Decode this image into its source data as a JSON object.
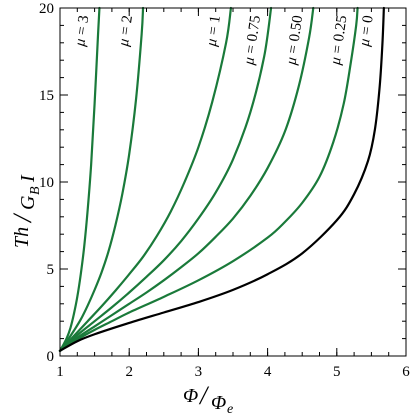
{
  "chart_data": {
    "type": "line",
    "xlim": [
      1,
      6
    ],
    "ylim": [
      0,
      20
    ],
    "x_ticks": [
      1,
      2,
      3,
      4,
      5,
      6
    ],
    "y_ticks": [
      0,
      5,
      10,
      15,
      20
    ],
    "x_minor_step": 0.25,
    "y_minor_step": 1,
    "grid": false,
    "xlabel": {
      "numerator": "Φ",
      "slash": "/",
      "denominator": "Φ",
      "denominator_sub": "e"
    },
    "ylabel": {
      "numerator": "Th",
      "slash": "/",
      "denominator": "G",
      "denominator_sub": "B",
      "denominator_tail": "I"
    },
    "colors": {
      "green": "#1a7a3a",
      "black": "#000000"
    },
    "series": [
      {
        "label": "μ = 3",
        "color": "#1a7a3a",
        "points": [
          [
            1.0,
            0.3
          ],
          [
            1.05,
            0.65
          ],
          [
            1.1,
            1.05
          ],
          [
            1.15,
            1.6
          ],
          [
            1.2,
            2.4
          ],
          [
            1.25,
            3.4
          ],
          [
            1.3,
            4.7
          ],
          [
            1.35,
            6.3
          ],
          [
            1.4,
            8.4
          ],
          [
            1.45,
            11.0
          ],
          [
            1.5,
            14.5
          ],
          [
            1.55,
            18.5
          ],
          [
            1.57,
            20.0
          ]
        ]
      },
      {
        "label": "μ = 2",
        "color": "#1a7a3a",
        "points": [
          [
            1.0,
            0.3
          ],
          [
            1.1,
            0.85
          ],
          [
            1.2,
            1.45
          ],
          [
            1.3,
            2.1
          ],
          [
            1.4,
            2.9
          ],
          [
            1.5,
            3.8
          ],
          [
            1.6,
            4.8
          ],
          [
            1.7,
            6.0
          ],
          [
            1.8,
            7.5
          ],
          [
            1.9,
            9.3
          ],
          [
            2.0,
            11.6
          ],
          [
            2.1,
            14.8
          ],
          [
            2.18,
            18.5
          ],
          [
            2.2,
            20.0
          ]
        ]
      },
      {
        "label": "μ = 1",
        "color": "#1a7a3a",
        "points": [
          [
            1.0,
            0.3
          ],
          [
            1.2,
            1.15
          ],
          [
            1.4,
            2.0
          ],
          [
            1.6,
            2.85
          ],
          [
            1.8,
            3.75
          ],
          [
            2.0,
            4.7
          ],
          [
            2.2,
            5.7
          ],
          [
            2.4,
            6.9
          ],
          [
            2.6,
            8.3
          ],
          [
            2.8,
            10.0
          ],
          [
            3.0,
            12.0
          ],
          [
            3.2,
            14.6
          ],
          [
            3.4,
            18.0
          ],
          [
            3.47,
            20.0
          ]
        ]
      },
      {
        "label": "μ = 0.75",
        "color": "#1a7a3a",
        "points": [
          [
            1.0,
            0.3
          ],
          [
            1.25,
            1.2
          ],
          [
            1.5,
            2.0
          ],
          [
            1.75,
            2.8
          ],
          [
            2.0,
            3.65
          ],
          [
            2.25,
            4.55
          ],
          [
            2.5,
            5.5
          ],
          [
            2.75,
            6.6
          ],
          [
            3.0,
            7.9
          ],
          [
            3.25,
            9.4
          ],
          [
            3.5,
            11.3
          ],
          [
            3.75,
            14.0
          ],
          [
            3.95,
            17.2
          ],
          [
            4.05,
            20.0
          ]
        ]
      },
      {
        "label": "μ = 0.50",
        "color": "#1a7a3a",
        "points": [
          [
            1.0,
            0.3
          ],
          [
            1.25,
            1.05
          ],
          [
            1.5,
            1.7
          ],
          [
            1.75,
            2.35
          ],
          [
            2.0,
            3.0
          ],
          [
            2.25,
            3.65
          ],
          [
            2.5,
            4.35
          ],
          [
            2.75,
            5.1
          ],
          [
            3.0,
            5.9
          ],
          [
            3.25,
            6.85
          ],
          [
            3.5,
            7.9
          ],
          [
            3.75,
            9.2
          ],
          [
            4.0,
            10.8
          ],
          [
            4.25,
            12.9
          ],
          [
            4.45,
            15.5
          ],
          [
            4.6,
            18.3
          ],
          [
            4.66,
            20.0
          ]
        ]
      },
      {
        "label": "μ = 0.25",
        "color": "#1a7a3a",
        "points": [
          [
            1.0,
            0.3
          ],
          [
            1.25,
            0.95
          ],
          [
            1.5,
            1.5
          ],
          [
            1.75,
            2.0
          ],
          [
            2.0,
            2.5
          ],
          [
            2.5,
            3.4
          ],
          [
            3.0,
            4.35
          ],
          [
            3.5,
            5.45
          ],
          [
            4.0,
            6.8
          ],
          [
            4.25,
            7.7
          ],
          [
            4.5,
            8.8
          ],
          [
            4.75,
            10.3
          ],
          [
            4.95,
            12.3
          ],
          [
            5.1,
            14.5
          ],
          [
            5.2,
            16.8
          ],
          [
            5.28,
            19.0
          ],
          [
            5.3,
            20.0
          ]
        ]
      },
      {
        "label": "μ = 0",
        "color": "#000000",
        "points": [
          [
            1.0,
            0.3
          ],
          [
            1.25,
            0.85
          ],
          [
            1.5,
            1.25
          ],
          [
            2.0,
            1.9
          ],
          [
            2.5,
            2.5
          ],
          [
            3.0,
            3.1
          ],
          [
            3.5,
            3.8
          ],
          [
            4.0,
            4.7
          ],
          [
            4.5,
            5.9
          ],
          [
            5.0,
            7.8
          ],
          [
            5.25,
            9.3
          ],
          [
            5.45,
            11.2
          ],
          [
            5.55,
            13.0
          ],
          [
            5.62,
            15.5
          ],
          [
            5.66,
            18.0
          ],
          [
            5.68,
            20.0
          ]
        ]
      }
    ]
  }
}
